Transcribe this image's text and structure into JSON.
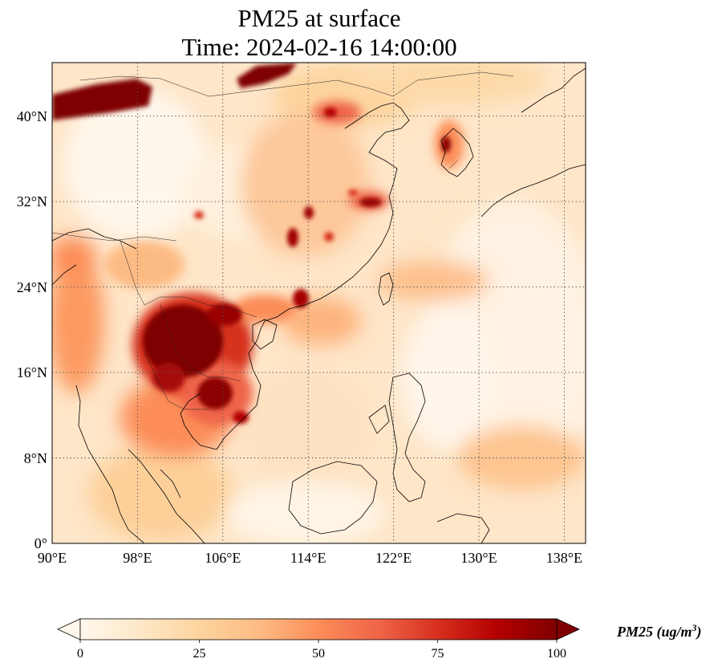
{
  "title_line1": "PM25 at surface",
  "title_line2": "Time: 2024-02-16 14:00:00",
  "map": {
    "extent": {
      "lon_min": 90,
      "lon_max": 140,
      "lat_min": 0,
      "lat_max": 45
    },
    "lat_ticks": [
      {
        "value": 40,
        "label": "40°N"
      },
      {
        "value": 32,
        "label": "32°N"
      },
      {
        "value": 24,
        "label": "24°N"
      },
      {
        "value": 16,
        "label": "16°N"
      },
      {
        "value": 8,
        "label": "8°N"
      },
      {
        "value": 0,
        "label": "0°"
      }
    ],
    "lon_ticks": [
      {
        "value": 90,
        "label": "90°E"
      },
      {
        "value": 98,
        "label": "98°E"
      },
      {
        "value": 106,
        "label": "106°E"
      },
      {
        "value": 114,
        "label": "114°E"
      },
      {
        "value": 122,
        "label": "122°E"
      },
      {
        "value": 130,
        "label": "130°E"
      },
      {
        "value": 138,
        "label": "138°E"
      }
    ],
    "gridlines": "dotted",
    "colormap": "OrRd"
  },
  "colorbar": {
    "label_text": "PM25 (ug/m",
    "label_sup": "3",
    "label_close": ")",
    "min": 0,
    "max": 100,
    "extend": "both",
    "ticks": [
      "0",
      "25",
      "50",
      "75",
      "100"
    ],
    "colors": [
      "#fff7ec",
      "#fee8c8",
      "#fdd49e",
      "#fdbb84",
      "#fc8d59",
      "#ef6548",
      "#d7301f",
      "#b30000",
      "#7f0000"
    ]
  }
}
